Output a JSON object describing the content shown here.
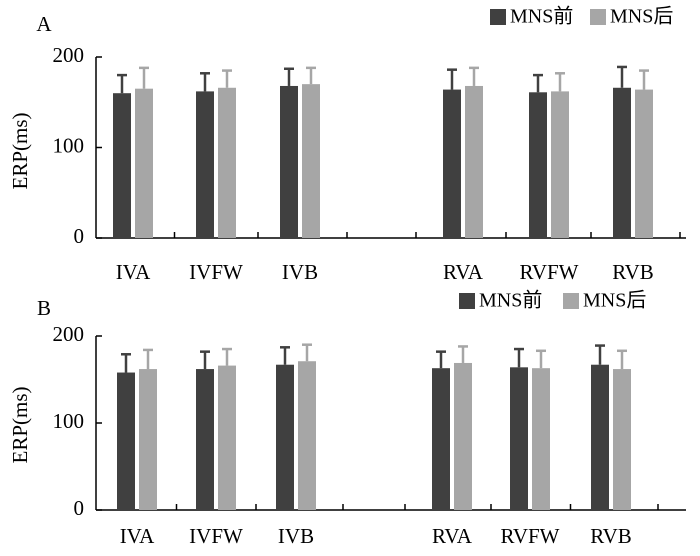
{
  "colors": {
    "pre": "#404040",
    "post": "#a6a6a6",
    "axis": "#000000"
  },
  "chart_data": [
    {
      "type": "bar",
      "panel_label": "A",
      "title": "",
      "xlabel": "",
      "ylabel": "ERP(ms)",
      "ylim": [
        0,
        200
      ],
      "yticks": [
        0,
        100,
        200
      ],
      "categories": [
        "IVA",
        "IVFW",
        "IVB",
        "RVA",
        "RVFW",
        "RVB"
      ],
      "legend_position": "top-right",
      "series": [
        {
          "name": "MNS前",
          "values": [
            160,
            162,
            168,
            164,
            161,
            166
          ],
          "errors": [
            20,
            20,
            19,
            22,
            19,
            23
          ]
        },
        {
          "name": "MNS后",
          "values": [
            165,
            166,
            170,
            168,
            162,
            164
          ],
          "errors": [
            23,
            19,
            18,
            20,
            20,
            21
          ]
        }
      ]
    },
    {
      "type": "bar",
      "panel_label": "B",
      "title": "",
      "xlabel": "",
      "ylabel": "ERP(ms)",
      "ylim": [
        0,
        200
      ],
      "yticks": [
        0,
        100,
        200
      ],
      "categories": [
        "IVA",
        "IVFW",
        "IVB",
        "RVA",
        "RVFW",
        "RVB"
      ],
      "legend_position": "top-right",
      "series": [
        {
          "name": "MNS前",
          "values": [
            158,
            162,
            167,
            163,
            164,
            167
          ],
          "errors": [
            21,
            20,
            20,
            19,
            21,
            22
          ]
        },
        {
          "name": "MNS后",
          "values": [
            162,
            166,
            171,
            169,
            163,
            162
          ],
          "errors": [
            22,
            19,
            19,
            19,
            20,
            21
          ]
        }
      ]
    }
  ]
}
